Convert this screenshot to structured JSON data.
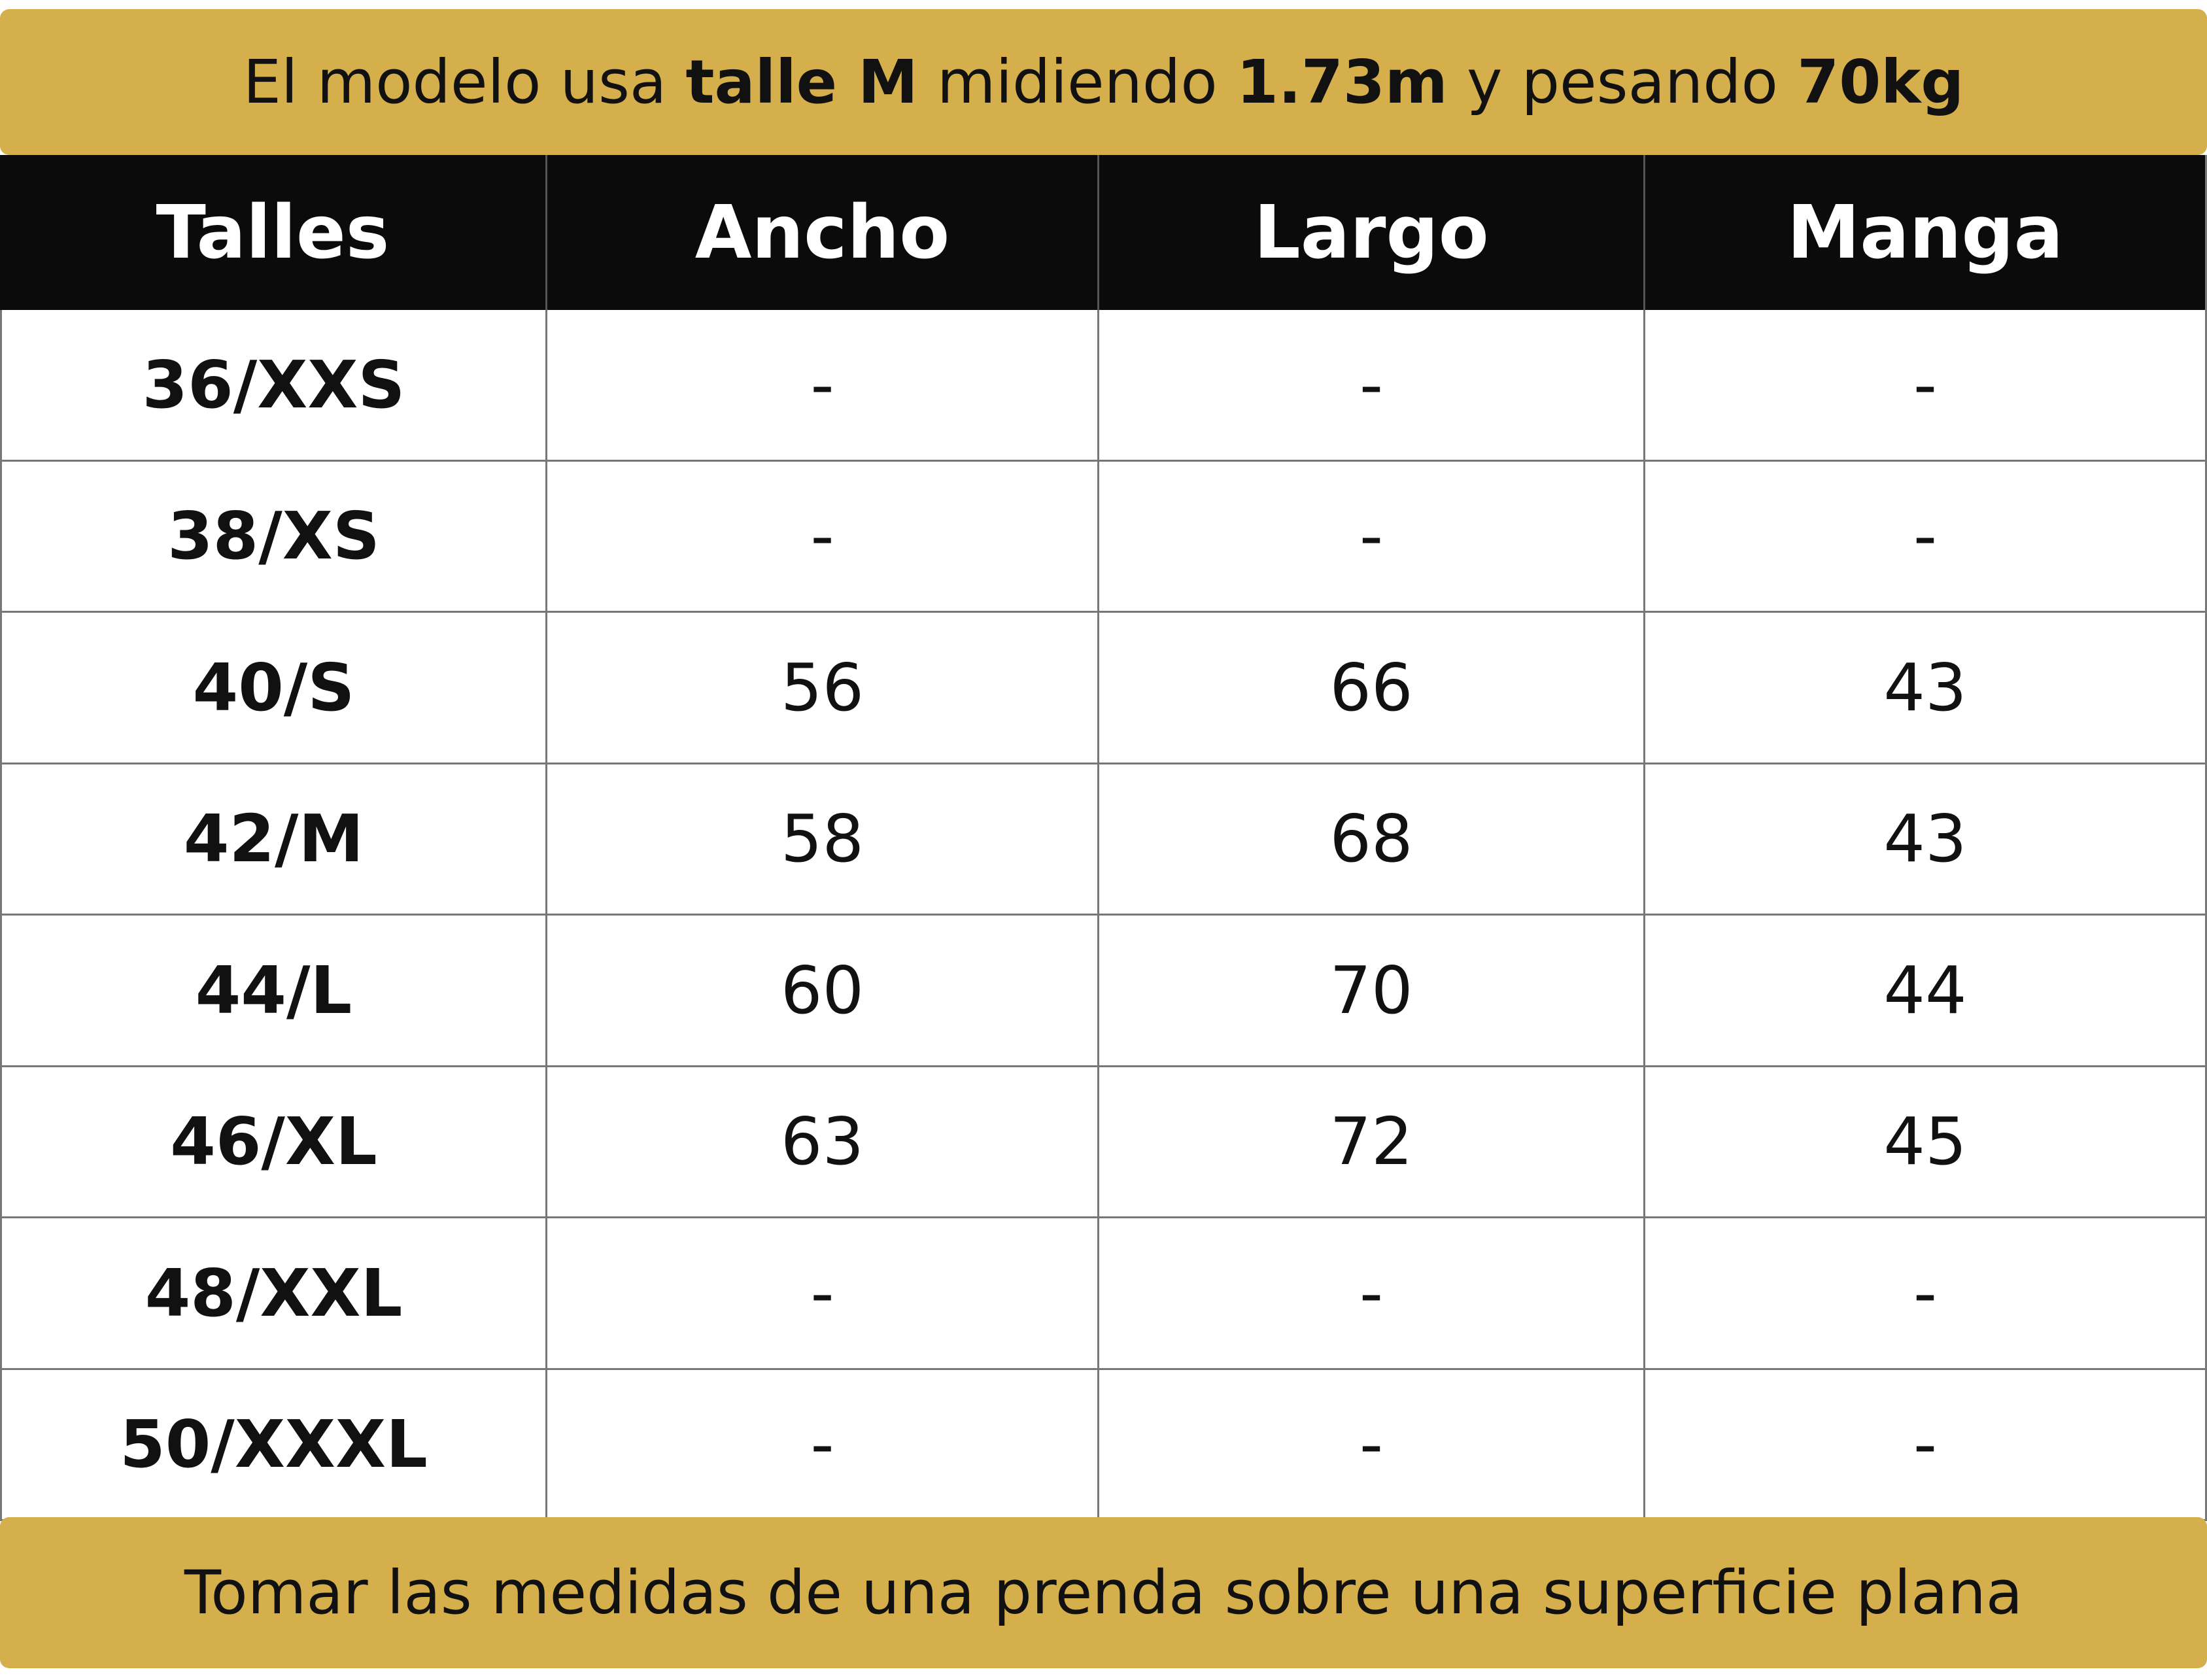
{
  "header": {
    "segments": [
      {
        "text": "El modelo usa ",
        "bold": false
      },
      {
        "text": "talle M",
        "bold": true
      },
      {
        "text": " midiendo ",
        "bold": false
      },
      {
        "text": "1.73m",
        "bold": true
      },
      {
        "text": " y pesando ",
        "bold": false
      },
      {
        "text": "70kg",
        "bold": true
      }
    ]
  },
  "table": {
    "columns": [
      "Talles",
      "Ancho",
      "Largo",
      "Manga"
    ],
    "rows": [
      [
        "36/XXS",
        "-",
        "-",
        "-"
      ],
      [
        "38/XS",
        "-",
        "-",
        "-"
      ],
      [
        "40/S",
        "56",
        "66",
        "43"
      ],
      [
        "42/M",
        "58",
        "68",
        "43"
      ],
      [
        "44/L",
        "60",
        "70",
        "44"
      ],
      [
        "46/XL",
        "63",
        "72",
        "45"
      ],
      [
        "48/XXL",
        "-",
        "-",
        "-"
      ],
      [
        "50/XXXL",
        "-",
        "-",
        "-"
      ]
    ]
  },
  "footer": {
    "text": "Tomar las medidas de una prenda sobre una superficie plana"
  }
}
